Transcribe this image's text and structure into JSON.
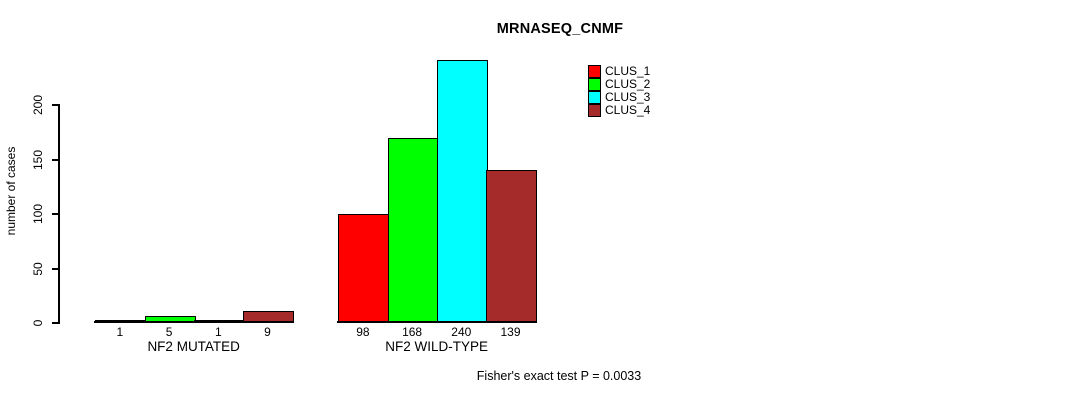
{
  "chart_data": {
    "type": "bar",
    "title": "MRNASEQ_CNMF",
    "xlabel": "",
    "ylabel": "number of cases",
    "categories": [
      "NF2 MUTATED",
      "NF2 WILD-TYPE"
    ],
    "series": [
      {
        "name": "CLUS_1",
        "color": "#FF0000",
        "values": [
          1,
          98
        ]
      },
      {
        "name": "CLUS_2",
        "color": "#00FF00",
        "values": [
          5,
          168
        ]
      },
      {
        "name": "CLUS_3",
        "color": "#00FFFF",
        "values": [
          1,
          240
        ]
      },
      {
        "name": "CLUS_4",
        "color": "#A52A2A",
        "values": [
          9,
          139
        ]
      }
    ],
    "y_ticks": [
      0,
      50,
      100,
      150,
      200
    ],
    "ylim": [
      0,
      243
    ],
    "grid": false,
    "bar_value_labels": [
      [
        1,
        5,
        1,
        9
      ],
      [
        98,
        168,
        240,
        139
      ]
    ],
    "legend": {
      "position": "top-right",
      "entries": [
        "CLUS_1",
        "CLUS_2",
        "CLUS_3",
        "CLUS_4"
      ]
    },
    "annotation": "Fisher's exact test P = 0.0033",
    "axis_color": "#000000",
    "background_color": "#FFFFFF"
  }
}
